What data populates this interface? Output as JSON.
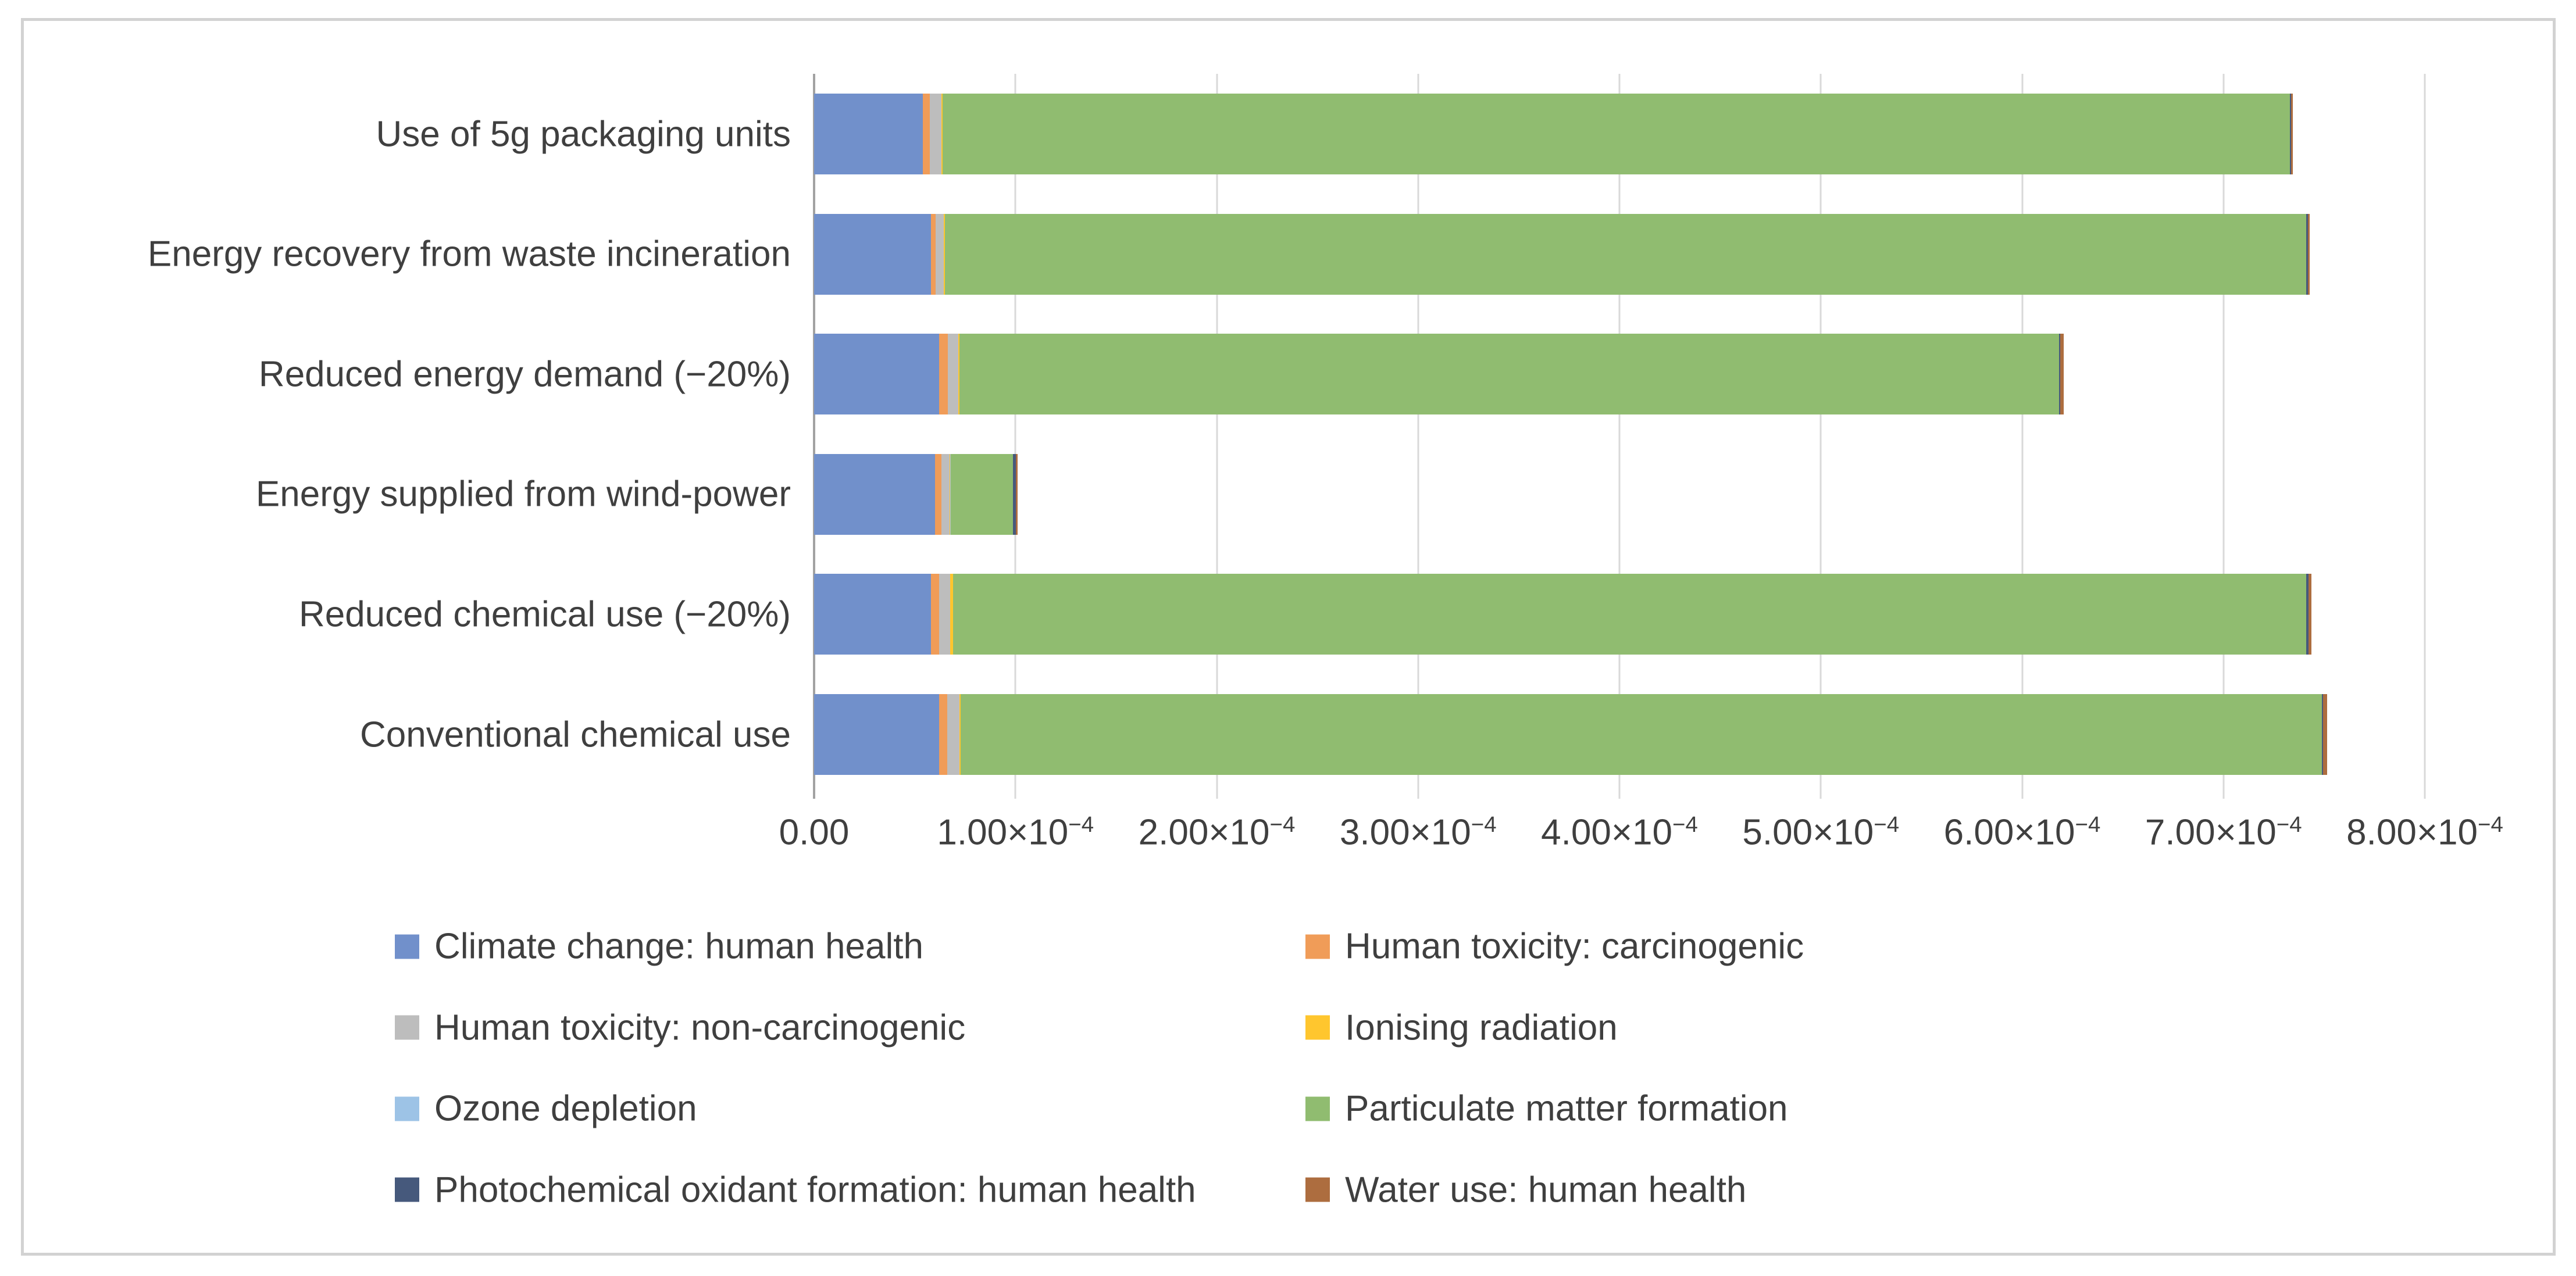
{
  "figure": {
    "background_color": "#ffffff",
    "border_color": "#d2d2d2",
    "text_color": "#3f3f3f",
    "gridline_color": "#d9d9d9",
    "axis_line_color": "#a2a2a2"
  },
  "chart_data": {
    "type": "bar",
    "orientation": "horizontal",
    "stacked": true,
    "title": "",
    "xlabel": "",
    "ylabel": "",
    "xlim": [
      0,
      0.0008
    ],
    "grid": true,
    "legend_position": "bottom",
    "categories": [
      "Use of 5g packaging units",
      "Energy recovery from waste incineration",
      "Reduced energy demand (−20%)",
      "Energy supplied from wind-power",
      "Reduced chemical use (−20%)",
      "Conventional chemical use"
    ],
    "series": [
      {
        "name": "Climate change: human health",
        "color": "#7190cb",
        "values": [
          5.4e-05,
          5.8e-05,
          6.2e-05,
          6e-05,
          5.8e-05,
          6.2e-05
        ]
      },
      {
        "name": "Human toxicity: carcinogenic",
        "color": "#f09c58",
        "values": [
          3.5e-06,
          2.5e-06,
          4.5e-06,
          3.2e-06,
          4e-06,
          4e-06
        ]
      },
      {
        "name": "Human toxicity: non-carcinogenic",
        "color": "#bdbdbd",
        "values": [
          5.8e-06,
          4e-06,
          5.2e-06,
          4e-06,
          5.5e-06,
          6.3e-06
        ]
      },
      {
        "name": "Ionising radiation",
        "color": "#ffc62e",
        "values": [
          4e-07,
          4e-07,
          4e-07,
          4e-07,
          1.4e-06,
          4e-07
        ]
      },
      {
        "name": "Ozone depletion",
        "color": "#9dc3e6",
        "values": [
          2e-07,
          2e-07,
          2e-07,
          2e-07,
          2e-07,
          2e-07
        ]
      },
      {
        "name": "Particulate matter formation",
        "color": "#90bc70",
        "values": [
          0.000669,
          0.000676,
          0.000546,
          3.1e-05,
          0.000672,
          0.000676
        ]
      },
      {
        "name": "Photochemical oxidant formation: human health",
        "color": "#46597c",
        "values": [
          8e-07,
          1e-06,
          5e-07,
          1.5e-06,
          1.2e-06,
          5e-07
        ]
      },
      {
        "name": "Water use: human health",
        "color": "#ad6d3f",
        "values": [
          8e-07,
          8e-07,
          1.8e-06,
          8e-07,
          1.4e-06,
          2e-06
        ]
      }
    ],
    "x_ticks": [
      {
        "base": "0.00",
        "sup": ""
      },
      {
        "base": "1.00×10",
        "sup": "−4"
      },
      {
        "base": "2.00×10",
        "sup": "−4"
      },
      {
        "base": "3.00×10",
        "sup": "−4"
      },
      {
        "base": "4.00×10",
        "sup": "−4"
      },
      {
        "base": "5.00×10",
        "sup": "−4"
      },
      {
        "base": "6.00×10",
        "sup": "−4"
      },
      {
        "base": "7.00×10",
        "sup": "−4"
      },
      {
        "base": "8.00×10",
        "sup": "−4"
      }
    ]
  }
}
